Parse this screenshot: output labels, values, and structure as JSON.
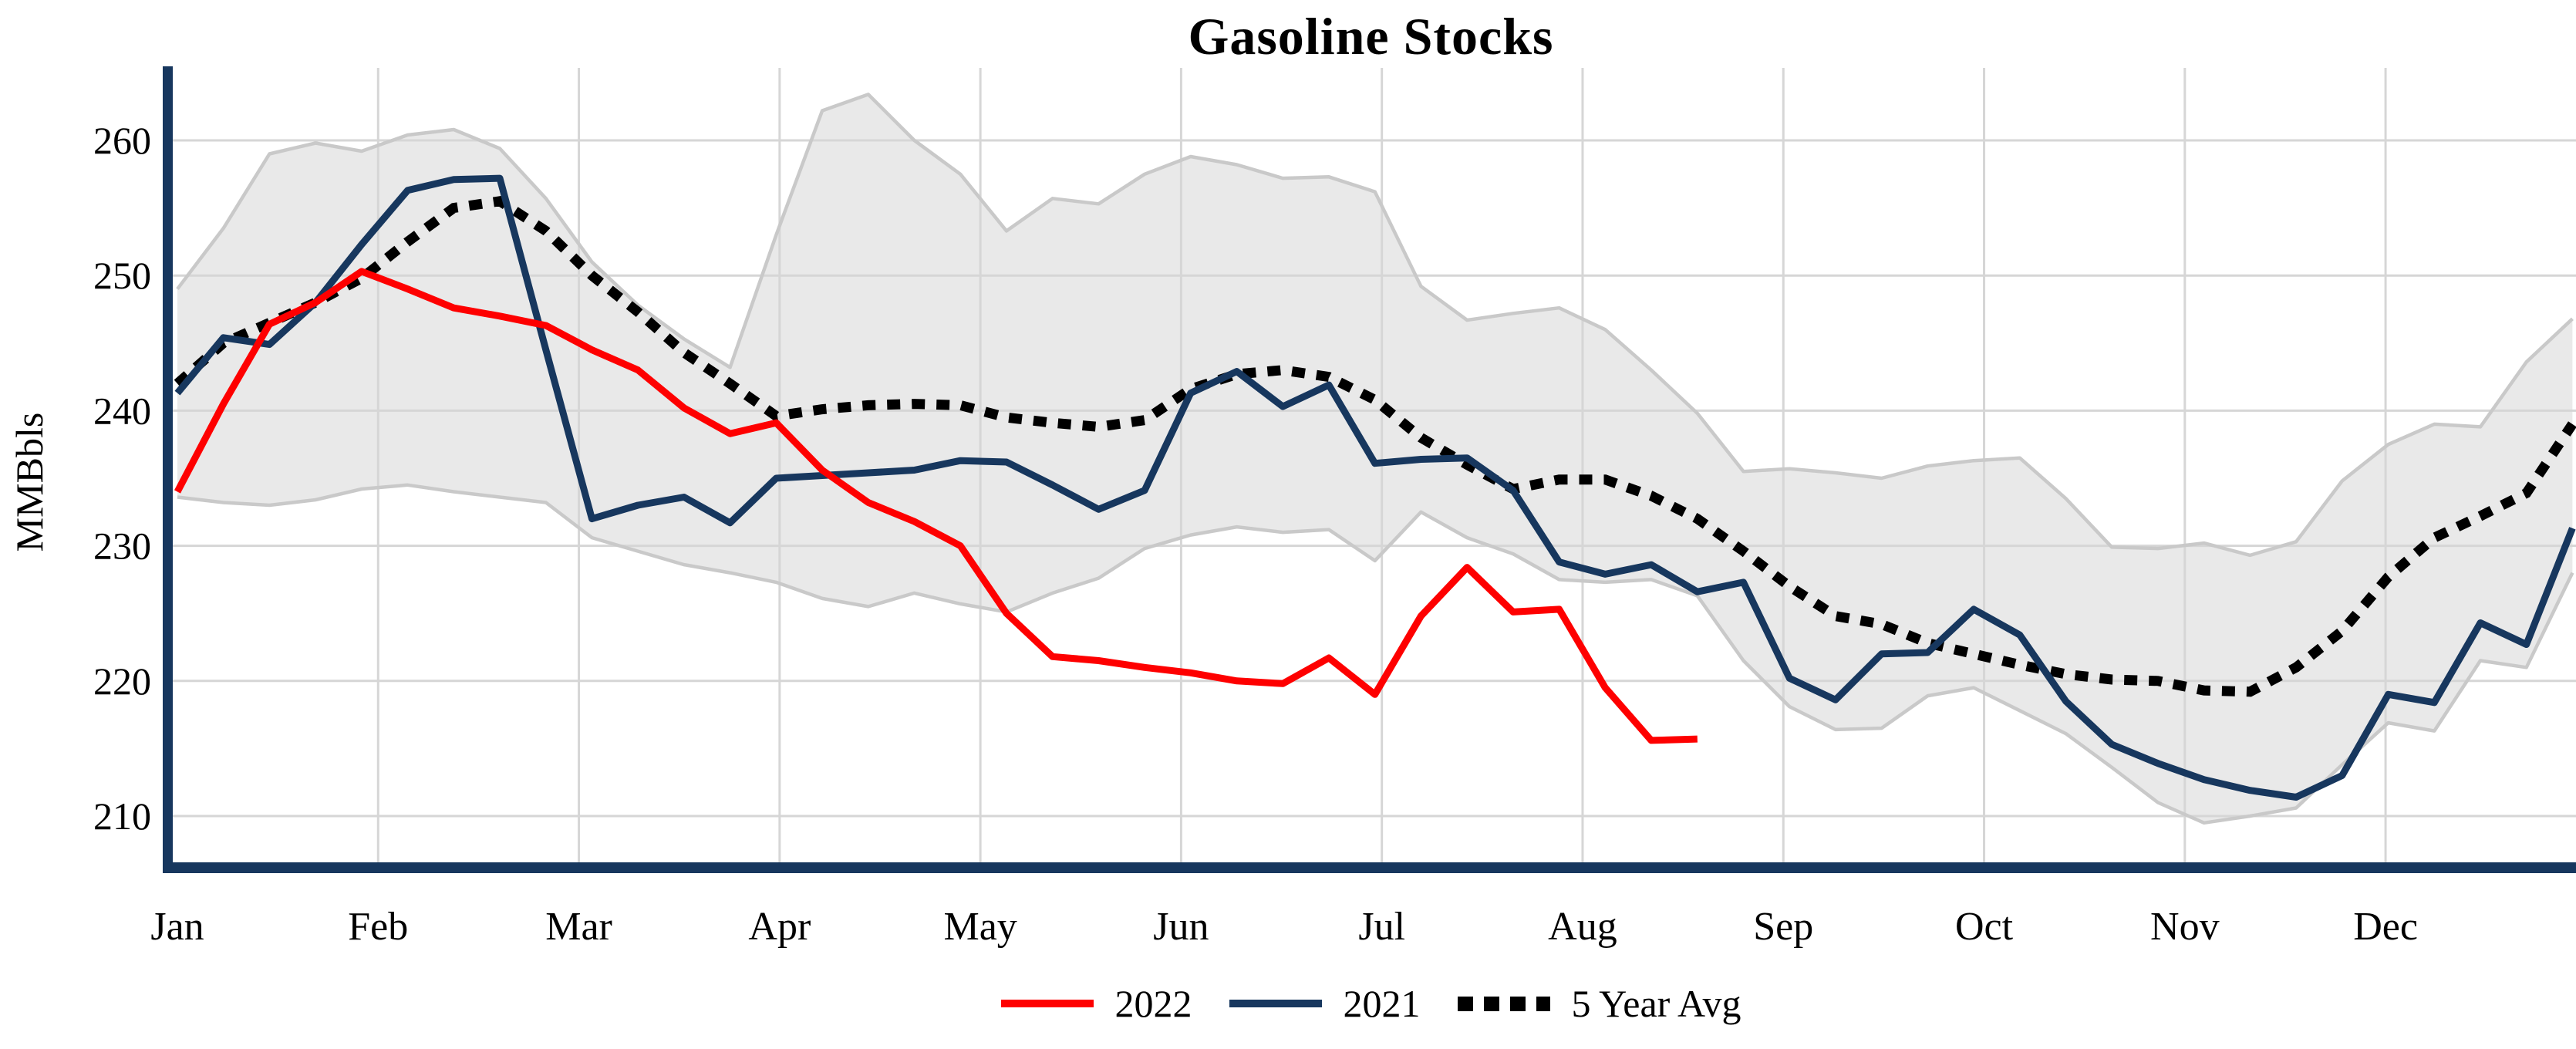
{
  "title": "Gasoline Stocks",
  "y_axis": {
    "label": "MMBbls",
    "ticks": [
      210,
      220,
      230,
      240,
      250,
      260
    ]
  },
  "x_axis": {
    "months": [
      "Jan",
      "Feb",
      "Mar",
      "Apr",
      "May",
      "Jun",
      "Jul",
      "Aug",
      "Sep",
      "Oct",
      "Nov",
      "Dec"
    ]
  },
  "legend": [
    {
      "label": "2022",
      "color": "#fe0000",
      "style": "solid"
    },
    {
      "label": "2021",
      "color": "#17375e",
      "style": "solid"
    },
    {
      "label": "5 Year Avg",
      "color": "#000000",
      "style": "dotted"
    }
  ],
  "colors": {
    "axis": "#17375e",
    "gridline": "#d6d6d6",
    "band_fill": "#e9e9e9",
    "band_edge": "#c9c9c9",
    "red_2022": "#fe0000",
    "navy_2021": "#17375e",
    "dotted_avg": "#000000"
  },
  "chart_data": {
    "type": "line",
    "title": "Gasoline Stocks",
    "ylabel": "MMBbls",
    "x_unit": "weeks (Jan - Dec)",
    "ylim": [
      206.5,
      266
    ],
    "grid": true,
    "legend_position": "bottom-center",
    "months": [
      "Jan",
      "Feb",
      "Mar",
      "Apr",
      "May",
      "Jun",
      "Jul",
      "Aug",
      "Sep",
      "Oct",
      "Nov",
      "Dec"
    ],
    "y_ticks": [
      210,
      220,
      230,
      240,
      250,
      260
    ],
    "series": [
      {
        "name": "2022",
        "style": "solid",
        "color": "#fe0000",
        "values": [
          234.0,
          240.5,
          246.4,
          248.0,
          250.3,
          249.0,
          247.6,
          247.0,
          246.3,
          244.5,
          243.0,
          240.2,
          238.3,
          239.1,
          235.6,
          233.2,
          231.8,
          230.0,
          225.0,
          221.8,
          221.5,
          221.0,
          220.6,
          220.0,
          219.8,
          221.7,
          219.0,
          224.8,
          228.4,
          225.1,
          225.3,
          219.5,
          215.6,
          215.7
        ]
      },
      {
        "name": "2021",
        "style": "solid",
        "color": "#17375e",
        "values": [
          241.3,
          245.4,
          244.9,
          248.0,
          252.3,
          256.3,
          257.1,
          257.2,
          244.5,
          232.0,
          233.0,
          233.6,
          231.7,
          235.0,
          235.2,
          235.4,
          235.6,
          236.3,
          236.2,
          234.5,
          232.7,
          234.1,
          241.3,
          242.9,
          240.3,
          241.9,
          236.1,
          236.4,
          236.5,
          234.1,
          228.8,
          227.9,
          228.6,
          226.6,
          227.3,
          220.2,
          218.6,
          222.0,
          222.1,
          225.3,
          223.4,
          218.5,
          215.3,
          213.9,
          212.7,
          211.9,
          211.4,
          213.0,
          219.0,
          218.4,
          224.3,
          222.7,
          231.3
        ]
      },
      {
        "name": "5 Year Avg",
        "style": "dotted",
        "color": "#000000",
        "values": [
          242.0,
          245.0,
          246.5,
          248.0,
          249.8,
          252.5,
          255.0,
          255.5,
          253.3,
          250.0,
          247.3,
          244.3,
          242.0,
          239.6,
          240.1,
          240.4,
          240.5,
          240.4,
          239.5,
          239.1,
          238.8,
          239.3,
          241.6,
          242.7,
          243.0,
          242.5,
          240.8,
          238.0,
          236.0,
          234.2,
          234.9,
          234.9,
          233.7,
          232.0,
          229.6,
          227.0,
          224.8,
          224.2,
          222.8,
          222.0,
          221.2,
          220.5,
          220.1,
          220.0,
          219.3,
          219.2,
          221.0,
          223.7,
          227.7,
          230.6,
          232.2,
          233.9,
          239.0
        ]
      }
    ],
    "five_year_range_band": {
      "fill": "#e9e9e9",
      "edge": "#c9c9c9",
      "upper": [
        249.0,
        253.5,
        259.0,
        259.8,
        259.2,
        260.4,
        260.8,
        259.4,
        255.7,
        251.0,
        247.8,
        245.3,
        243.2,
        253.0,
        262.2,
        263.4,
        260.0,
        257.5,
        253.3,
        255.7,
        255.3,
        257.5,
        258.8,
        258.2,
        257.2,
        257.3,
        256.2,
        249.2,
        246.7,
        247.2,
        247.6,
        246.0,
        243.0,
        239.8,
        235.5,
        235.7,
        235.4,
        235.0,
        235.9,
        236.3,
        236.5,
        233.5,
        229.9,
        229.8,
        230.2,
        229.3,
        230.3,
        234.8,
        237.5,
        239.0,
        238.8,
        243.6,
        246.8
      ],
      "lower": [
        233.6,
        233.2,
        233.0,
        233.4,
        234.2,
        234.5,
        234.0,
        233.6,
        233.2,
        230.6,
        229.6,
        228.6,
        228.0,
        227.3,
        226.1,
        225.5,
        226.5,
        225.7,
        225.1,
        226.5,
        227.6,
        229.8,
        230.8,
        231.4,
        231.0,
        231.2,
        228.9,
        232.5,
        230.6,
        229.4,
        227.5,
        227.3,
        227.5,
        226.3,
        221.5,
        218.1,
        216.4,
        216.5,
        218.9,
        219.5,
        217.8,
        216.1,
        213.6,
        211.0,
        209.5,
        210.0,
        210.6,
        213.8,
        216.9,
        216.3,
        221.5,
        221.0,
        228.0
      ]
    }
  }
}
